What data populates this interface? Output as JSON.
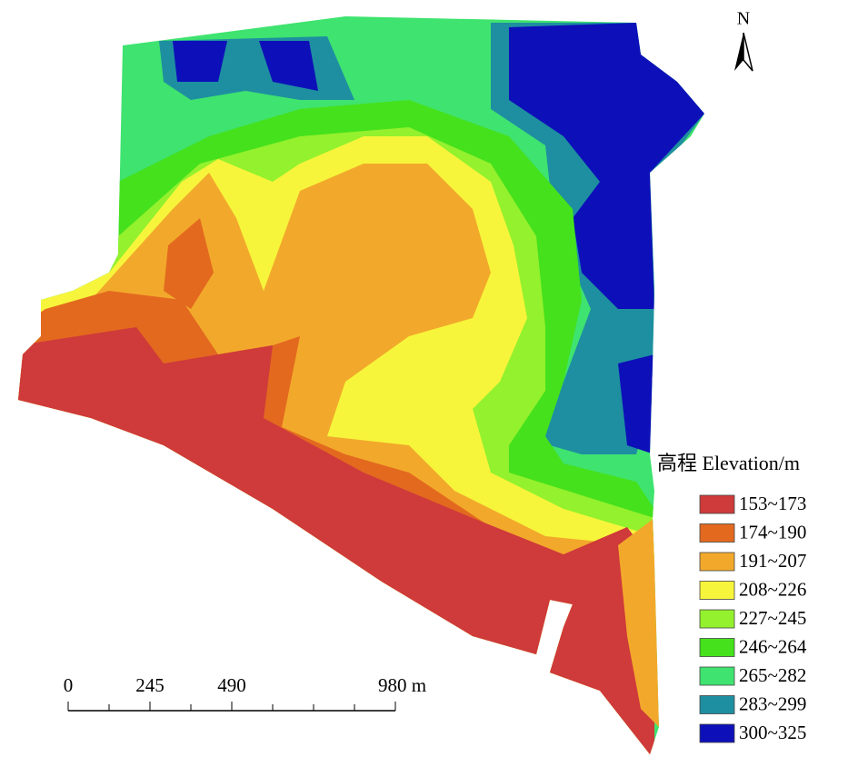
{
  "north_label": "N",
  "legend": {
    "title": "高程 Elevation/m",
    "items": [
      {
        "label": "153~173",
        "color": "#cf3a3a"
      },
      {
        "label": "174~190",
        "color": "#e3691f"
      },
      {
        "label": "191~207",
        "color": "#f2a92b"
      },
      {
        "label": "208~226",
        "color": "#f7f53b"
      },
      {
        "label": "227~245",
        "color": "#93f12d"
      },
      {
        "label": "246~264",
        "color": "#45e11c"
      },
      {
        "label": "265~282",
        "color": "#3fe36f"
      },
      {
        "label": "283~299",
        "color": "#1e8fa0"
      },
      {
        "label": "300~325",
        "color": "#0d10b8"
      }
    ]
  },
  "scale_bar": {
    "labels": [
      "0",
      "245",
      "490",
      "980 m"
    ]
  }
}
